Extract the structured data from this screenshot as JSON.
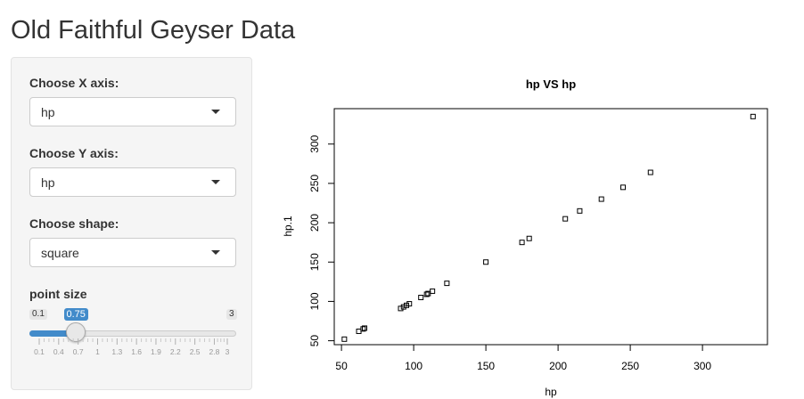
{
  "page": {
    "title": "Old Faithful Geyser Data"
  },
  "sidebar": {
    "x_axis": {
      "label": "Choose X axis:",
      "value": "hp"
    },
    "y_axis": {
      "label": "Choose Y axis:",
      "value": "hp"
    },
    "shape": {
      "label": "Choose shape:",
      "value": "square"
    },
    "point_size": {
      "label": "point size",
      "min": "0.1",
      "max": "3",
      "value": "0.75",
      "value_num": 0.75,
      "min_num": 0.1,
      "max_num": 3,
      "ticks": [
        "0.1",
        "0.4",
        "0.7",
        "1",
        "1.3",
        "1.6",
        "1.9",
        "2.2",
        "2.5",
        "2.8",
        "3"
      ]
    }
  },
  "chart_data": {
    "type": "scatter",
    "title": "hp VS hp",
    "xlabel": "hp",
    "ylabel": "hp.1",
    "xlim": [
      45,
      345
    ],
    "ylim": [
      45,
      345
    ],
    "xticks": [
      50,
      100,
      150,
      200,
      250,
      300
    ],
    "yticks": [
      50,
      100,
      150,
      200,
      250,
      300
    ],
    "marker": "square",
    "grid": false,
    "points": [
      {
        "x": 52,
        "y": 52
      },
      {
        "x": 62,
        "y": 62
      },
      {
        "x": 65,
        "y": 65
      },
      {
        "x": 66,
        "y": 66
      },
      {
        "x": 91,
        "y": 91
      },
      {
        "x": 93,
        "y": 93
      },
      {
        "x": 95,
        "y": 95
      },
      {
        "x": 97,
        "y": 97
      },
      {
        "x": 105,
        "y": 105
      },
      {
        "x": 109,
        "y": 109
      },
      {
        "x": 110,
        "y": 110
      },
      {
        "x": 113,
        "y": 113
      },
      {
        "x": 123,
        "y": 123
      },
      {
        "x": 150,
        "y": 150
      },
      {
        "x": 175,
        "y": 175
      },
      {
        "x": 180,
        "y": 180
      },
      {
        "x": 205,
        "y": 205
      },
      {
        "x": 215,
        "y": 215
      },
      {
        "x": 230,
        "y": 230
      },
      {
        "x": 245,
        "y": 245
      },
      {
        "x": 264,
        "y": 264
      },
      {
        "x": 335,
        "y": 335
      }
    ]
  }
}
